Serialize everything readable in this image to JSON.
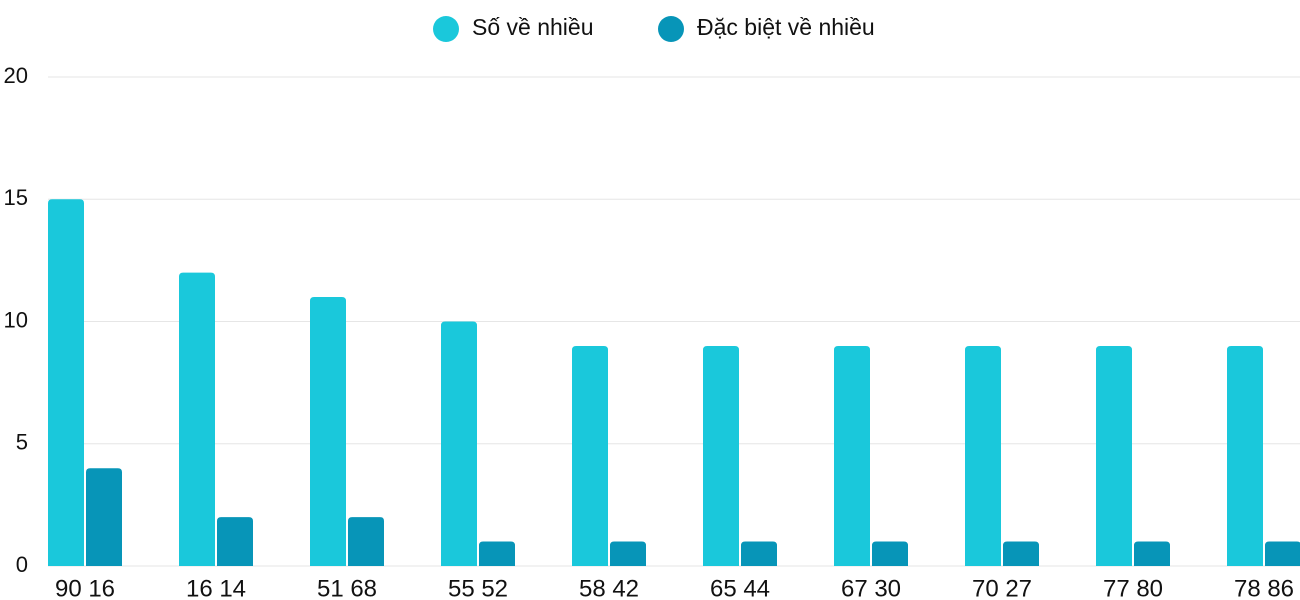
{
  "chart_data": {
    "type": "bar",
    "categories": [
      "90 16",
      "16 14",
      "51 68",
      "55 52",
      "58 42",
      "65 44",
      "67 30",
      "70 27",
      "77 80",
      "78 86"
    ],
    "series": [
      {
        "name": "Số về nhiều",
        "color": "#1ac8db",
        "values": [
          15,
          12,
          11,
          10,
          9,
          9,
          9,
          9,
          9,
          9
        ]
      },
      {
        "name": "Đặc biệt về nhiều",
        "color": "#0795b8",
        "values": [
          4,
          2,
          2,
          1,
          1,
          1,
          1,
          1,
          1,
          1
        ]
      }
    ],
    "ylim": [
      0,
      20
    ],
    "yticks": [
      0,
      5,
      10,
      15,
      20
    ],
    "grid": true,
    "legend": "top"
  }
}
